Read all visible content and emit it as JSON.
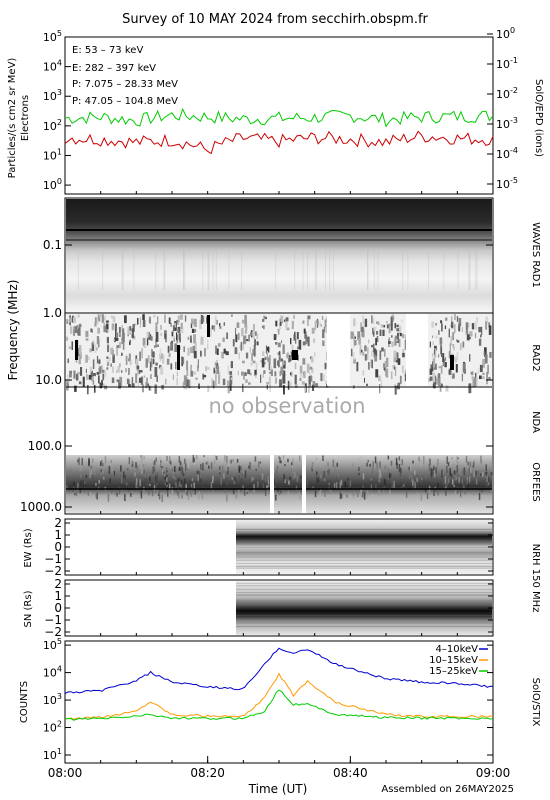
{
  "title": "Survey of 10 MAY 2024 from secchirh.obspm.fr",
  "footer": "Assembled on 26MAY2025",
  "panels": {
    "particles": {
      "ylabel": "Particles/(s cm2 sr MeV)",
      "ylabel2": "Electrons",
      "right_axis_label": "SolO/EPD (ions)",
      "left_ticks": [
        "10",
        "10",
        "10",
        "10",
        "10",
        "10"
      ],
      "left_exps": [
        "0",
        "1",
        "2",
        "3",
        "4",
        "5"
      ],
      "right_ticks": [
        "10",
        "10",
        "10",
        "10",
        "10",
        "10",
        "10"
      ],
      "right_exps": [
        "-5",
        "-4",
        "-3",
        "-2",
        "-1",
        "0"
      ],
      "legend": [
        {
          "label": "E: 53 – 73 keV",
          "color": "#00cc00"
        },
        {
          "label": "E: 282 – 397 keV",
          "color": "#cc0000"
        },
        {
          "label": "P: 7.075 – 28.33 MeV",
          "color": "#000000"
        },
        {
          "label": "P: 47.05 – 104.8 MeV",
          "color": "#0000cc"
        }
      ]
    },
    "radio": {
      "ylabel": "Frequency (MHz)",
      "yticks": [
        "0.1",
        "1.0",
        "10.0",
        "100.0",
        "1000.0"
      ],
      "no_observation": "no observation",
      "instruments": [
        "WAVES RAD1",
        "RAD2",
        "NDA",
        "ORFEES"
      ]
    },
    "nrh": {
      "label": "NRH 150 MHz",
      "ew_ylabel": "EW (Rs)",
      "sn_ylabel": "SN (Rs)",
      "ticks": [
        "2",
        "1",
        "0",
        "−1",
        "−2"
      ]
    },
    "stix": {
      "ylabel": "COUNTS",
      "right_label": "SolO/STIX",
      "legend": [
        {
          "label": "4–10keV",
          "color": "#0000cc"
        },
        {
          "label": "10–15keV",
          "color": "#ff9900"
        },
        {
          "label": "15–25keV",
          "color": "#00cc00"
        }
      ],
      "yticks": [
        "10",
        "10",
        "10",
        "10",
        "10"
      ],
      "yexps": [
        "1",
        "2",
        "3",
        "4",
        "5"
      ]
    }
  },
  "xaxis": {
    "label": "Time (UT)",
    "ticks": [
      "08:00",
      "08:20",
      "08:40",
      "09:00"
    ]
  },
  "chart_data": [
    {
      "type": "line",
      "title": "",
      "xlabel": "",
      "ylabel": "Particles/(s cm2 sr MeV)",
      "ylog": true,
      "ylim": [
        0.5,
        100000
      ],
      "xlim": [
        "08:00",
        "09:00"
      ],
      "x": [
        "08:00",
        "08:05",
        "08:10",
        "08:15",
        "08:20",
        "08:25",
        "08:30",
        "08:35",
        "08:40",
        "08:45",
        "08:50",
        "08:55",
        "09:00"
      ],
      "series": [
        {
          "name": "E: 53 – 73 keV",
          "values": [
            180,
            200,
            150,
            230,
            200,
            170,
            180,
            190,
            220,
            160,
            200,
            210,
            220
          ]
        },
        {
          "name": "E: 282 – 397 keV",
          "values": [
            40,
            35,
            28,
            33,
            15,
            38,
            30,
            40,
            35,
            28,
            45,
            38,
            35
          ]
        }
      ]
    },
    {
      "type": "line",
      "title": "",
      "xlabel": "Time (UT)",
      "ylabel": "COUNTS",
      "ylog": true,
      "ylim": [
        10,
        100000
      ],
      "xlim": [
        "08:00",
        "09:00"
      ],
      "x": [
        "08:00",
        "08:05",
        "08:10",
        "08:12",
        "08:15",
        "08:20",
        "08:25",
        "08:28",
        "08:30",
        "08:32",
        "08:34",
        "08:38",
        "08:45",
        "08:50",
        "08:55",
        "09:00"
      ],
      "series": [
        {
          "name": "4–10keV",
          "values": [
            1800,
            2200,
            5000,
            10000,
            4500,
            3000,
            2500,
            20000,
            80000,
            50000,
            70000,
            20000,
            6000,
            4500,
            4000,
            3000
          ]
        },
        {
          "name": "10–15keV",
          "values": [
            200,
            230,
            400,
            900,
            300,
            260,
            250,
            1200,
            9000,
            1500,
            5000,
            800,
            300,
            250,
            250,
            250
          ]
        },
        {
          "name": "15–25keV",
          "values": [
            200,
            210,
            260,
            300,
            220,
            210,
            220,
            400,
            2500,
            700,
            700,
            300,
            230,
            220,
            220,
            210
          ]
        }
      ]
    }
  ]
}
